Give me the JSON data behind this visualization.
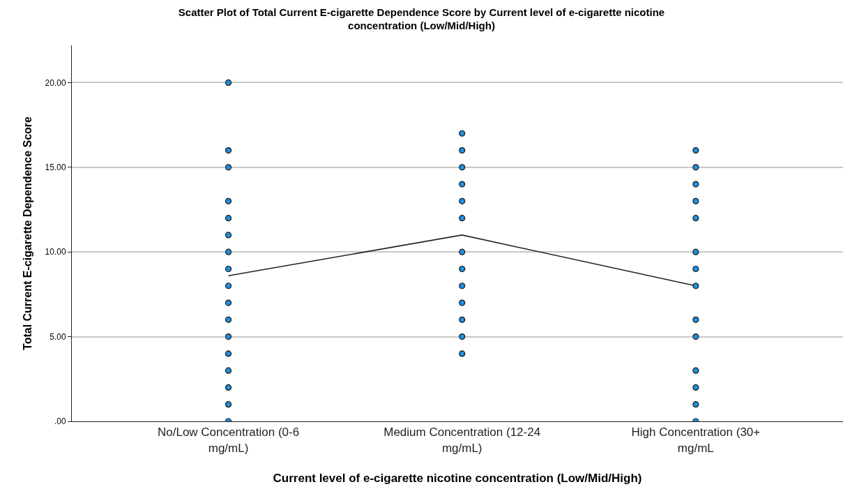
{
  "chart_data": {
    "type": "scatter",
    "title": "Scatter Plot of Total Current E-cigarette Dependence Score by Current level of e-cigarette nicotine concentration (Low/Mid/High)",
    "xlabel": "Current level of e-cigarette nicotine concentration (Low/Mid/High)",
    "ylabel": "Total Current E-cigarette Dependence Score",
    "categories": [
      "No/Low Concentration (0-6 mg/mL)",
      "Medium Concentration (12-24 mg/mL)",
      "High Concentration (30+ mg/mL"
    ],
    "series": [
      {
        "color": "#1f8fe0",
        "x": [
          "No/Low Concentration (0-6 mg/mL)",
          "No/Low Concentration (0-6 mg/mL)",
          "No/Low Concentration (0-6 mg/mL)",
          "No/Low Concentration (0-6 mg/mL)",
          "No/Low Concentration (0-6 mg/mL)",
          "No/Low Concentration (0-6 mg/mL)",
          "No/Low Concentration (0-6 mg/mL)",
          "No/Low Concentration (0-6 mg/mL)",
          "No/Low Concentration (0-6 mg/mL)",
          "No/Low Concentration (0-6 mg/mL)",
          "No/Low Concentration (0-6 mg/mL)",
          "No/Low Concentration (0-6 mg/mL)",
          "No/Low Concentration (0-6 mg/mL)",
          "No/Low Concentration (0-6 mg/mL)",
          "No/Low Concentration (0-6 mg/mL)",
          "No/Low Concentration (0-6 mg/mL)",
          "No/Low Concentration (0-6 mg/mL)",
          "Medium Concentration (12-24 mg/mL)",
          "Medium Concentration (12-24 mg/mL)",
          "Medium Concentration (12-24 mg/mL)",
          "Medium Concentration (12-24 mg/mL)",
          "Medium Concentration (12-24 mg/mL)",
          "Medium Concentration (12-24 mg/mL)",
          "Medium Concentration (12-24 mg/mL)",
          "Medium Concentration (12-24 mg/mL)",
          "Medium Concentration (12-24 mg/mL)",
          "Medium Concentration (12-24 mg/mL)",
          "Medium Concentration (12-24 mg/mL)",
          "Medium Concentration (12-24 mg/mL)",
          "Medium Concentration (12-24 mg/mL)",
          "High Concentration (30+ mg/mL",
          "High Concentration (30+ mg/mL",
          "High Concentration (30+ mg/mL",
          "High Concentration (30+ mg/mL",
          "High Concentration (30+ mg/mL",
          "High Concentration (30+ mg/mL",
          "High Concentration (30+ mg/mL",
          "High Concentration (30+ mg/mL",
          "High Concentration (30+ mg/mL",
          "High Concentration (30+ mg/mL",
          "High Concentration (30+ mg/mL",
          "High Concentration (30+ mg/mL",
          "High Concentration (30+ mg/mL",
          "High Concentration (30+ mg/mL"
        ],
        "values": [
          20,
          16,
          15,
          13,
          12,
          11,
          10,
          9,
          8,
          7,
          6,
          5,
          4,
          3,
          2,
          1,
          0,
          17,
          16,
          15,
          14,
          13,
          12,
          10,
          9,
          8,
          7,
          6,
          5,
          4,
          16,
          15,
          14,
          13,
          12,
          10,
          9,
          8,
          6,
          5,
          3,
          2,
          1,
          0
        ]
      },
      {
        "type": "line",
        "color": "#222222",
        "values": [
          8.6,
          11.0,
          8.0
        ],
        "marker": "none"
      }
    ],
    "ylim": [
      0,
      22.2
    ],
    "yticks": [
      {
        "value": 0,
        "label": ".00"
      },
      {
        "value": 5,
        "label": "5.00"
      },
      {
        "value": 10,
        "label": "10.00"
      },
      {
        "value": 15,
        "label": "15.00"
      },
      {
        "value": 20,
        "label": "20.00"
      }
    ],
    "grid": "y",
    "marker": "circle",
    "line_style": "solid"
  }
}
